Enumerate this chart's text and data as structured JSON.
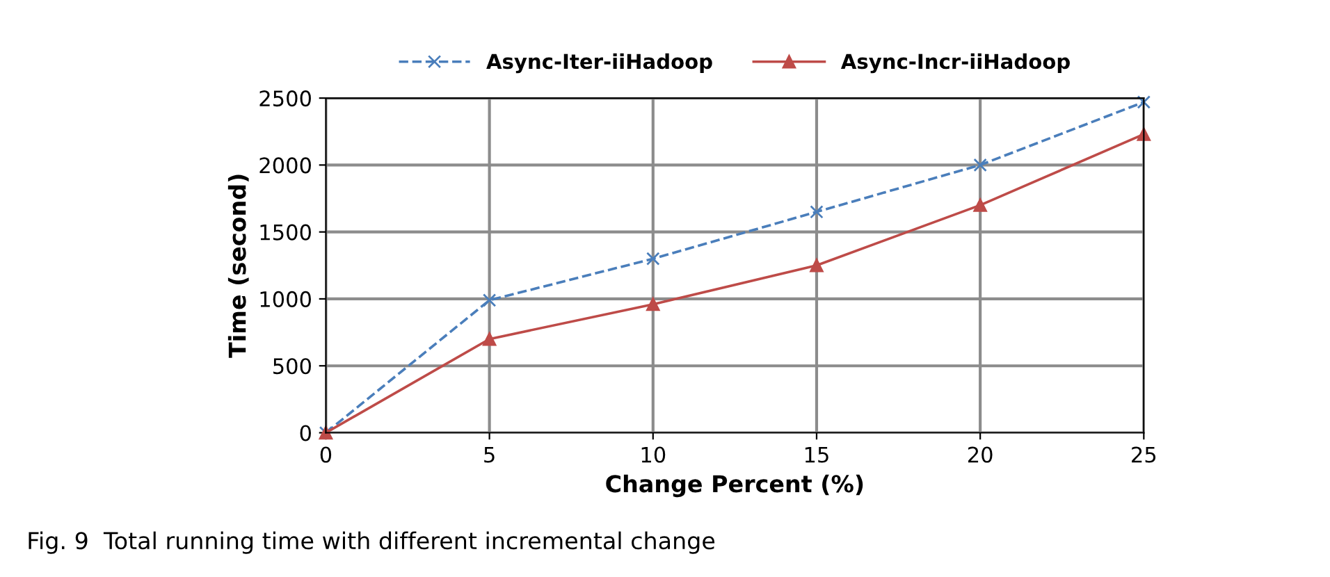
{
  "chart_data": {
    "type": "line",
    "xlabel": "Change Percent (%)",
    "ylabel": "Time (second)",
    "x": [
      0,
      5,
      10,
      15,
      20,
      25
    ],
    "series": [
      {
        "name": "Async-Iter-iiHadoop",
        "color": "#4a7ebb",
        "values": [
          0,
          990,
          1300,
          1650,
          2000,
          2470
        ],
        "marker": "cross",
        "line_style": "dashed"
      },
      {
        "name": "Async-Incr-iiHadoop",
        "color": "#be4b48",
        "values": [
          0,
          700,
          960,
          1250,
          1700,
          2230
        ],
        "marker": "triangle",
        "line_style": "solid"
      }
    ],
    "xlim": [
      0,
      25
    ],
    "xticks": [
      0,
      5,
      10,
      15,
      20,
      25
    ],
    "ylim": [
      0,
      2500
    ],
    "yticks": [
      0,
      500,
      1000,
      1500,
      2000,
      2500
    ],
    "grid": true,
    "legend": "top",
    "annotations": [
      "Fig. 9  Total running time with different incremental change"
    ]
  }
}
